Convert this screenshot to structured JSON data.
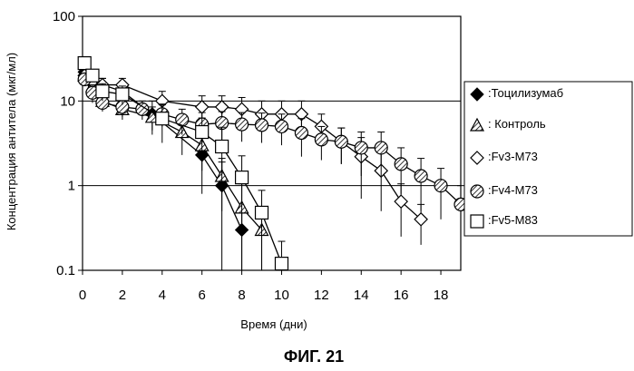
{
  "chart_data": {
    "type": "line",
    "title": "",
    "caption": "ФИГ. 21",
    "xlabel": "Время (дни)",
    "ylabel": "Концентрация антитела (мкг/мл)",
    "yscale": "log",
    "xlim": [
      0,
      19
    ],
    "ylim": [
      0.1,
      100
    ],
    "x_ticks": [
      "0",
      "2",
      "4",
      "6",
      "8",
      "10",
      "12",
      "14",
      "16",
      "18"
    ],
    "y_ticks": [
      "0.1",
      "1",
      "10",
      "100"
    ],
    "grid": "horizontal lines at 1 and 10",
    "legend_position": "right",
    "series": [
      {
        "name": ":Тоцилизумаб",
        "marker": "diamond-filled",
        "x": [
          0.1,
          0.5,
          1,
          2,
          3.5,
          6,
          7,
          8
        ],
        "y": [
          22,
          16,
          15.5,
          13,
          7,
          2.3,
          1.0,
          0.3
        ],
        "err": [
          3,
          3,
          3,
          3,
          3,
          1.5,
          0.9,
          0.2
        ]
      },
      {
        "name": ": Контроль",
        "marker": "triangle-hatched",
        "x": [
          0.1,
          0.5,
          1,
          2,
          3.5,
          5,
          6,
          7,
          8,
          9
        ],
        "y": [
          20,
          15,
          10,
          8,
          6.5,
          4.3,
          3.0,
          1.3,
          0.55,
          0.3
        ],
        "err": [
          3,
          3,
          2,
          2,
          2,
          2,
          1.5,
          0.8,
          0.5,
          0.2
        ]
      },
      {
        "name": ":Fv3-M73",
        "marker": "diamond-open",
        "x": [
          0.1,
          0.5,
          1,
          2,
          4,
          6,
          7,
          8,
          9,
          10,
          11,
          12,
          13,
          14,
          15,
          16,
          17
        ],
        "y": [
          20,
          17,
          15.5,
          15.5,
          10,
          8.5,
          8.5,
          8,
          7,
          7,
          7,
          5,
          3.3,
          2.2,
          1.5,
          0.65,
          0.4
        ],
        "err": [
          3,
          3,
          3,
          3,
          3,
          3,
          3,
          3,
          3,
          3,
          3,
          2,
          1.5,
          1.5,
          1,
          0.4,
          0.2
        ]
      },
      {
        "name": ":Fv4-M73",
        "marker": "circle-hatched",
        "x": [
          0.1,
          0.5,
          1,
          2,
          3,
          4,
          5,
          6,
          7,
          8,
          9,
          10,
          11,
          12,
          13,
          14,
          15,
          16,
          17,
          18,
          19
        ],
        "y": [
          18,
          12.5,
          9.5,
          8.5,
          8,
          7,
          6,
          5.3,
          5.5,
          5.3,
          5.2,
          5.0,
          4.2,
          3.5,
          3.3,
          2.8,
          2.8,
          1.8,
          1.3,
          1.0,
          0.6
        ],
        "err": [
          3,
          3,
          2,
          2,
          2,
          2,
          2,
          2,
          2,
          2,
          2,
          2,
          2,
          1.5,
          1.5,
          1.5,
          1.5,
          1.0,
          0.8,
          0.6,
          0.4
        ]
      },
      {
        "name": ":Fv5-M83",
        "marker": "square-open",
        "x": [
          0.1,
          0.5,
          1,
          2,
          4,
          6,
          7,
          8,
          9,
          10
        ],
        "y": [
          28,
          20,
          13,
          12,
          6.2,
          4.3,
          2.9,
          1.25,
          0.48,
          0.12
        ],
        "err": [
          4,
          3,
          3,
          3,
          3,
          2,
          2,
          1.0,
          0.4,
          0.1
        ]
      }
    ]
  }
}
